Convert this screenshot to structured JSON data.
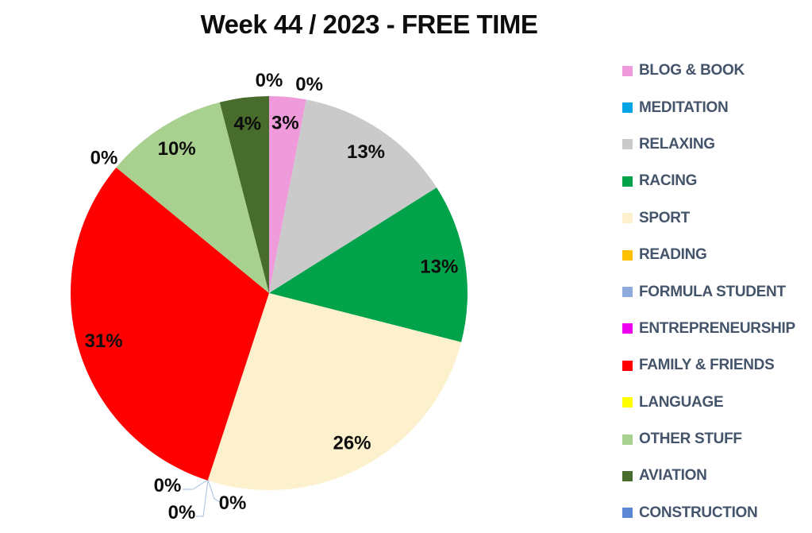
{
  "title": "Week 44 / 2023 - FREE TIME",
  "chart_data": {
    "type": "pie",
    "title": "Week 44 / 2023 - FREE TIME",
    "legend_position": "right",
    "label_format": "percent",
    "slices": [
      {
        "label": "BLOG & BOOK",
        "pct": 3,
        "color": "#ef9bdb",
        "label_text": "3%",
        "placement": "inside"
      },
      {
        "label": "MEDITATION",
        "pct": 0,
        "color": "#00a3e3",
        "label_text": "0%",
        "placement": "outside"
      },
      {
        "label": "RELAXING",
        "pct": 13,
        "color": "#cbcaca",
        "label_text": "13%",
        "placement": "inside"
      },
      {
        "label": "RACING",
        "pct": 13,
        "color": "#00a24a",
        "label_text": "13%",
        "placement": "inside"
      },
      {
        "label": "SPORT",
        "pct": 26,
        "color": "#fcf0cd",
        "label_text": "26%",
        "placement": "inside"
      },
      {
        "label": "READING",
        "pct": 0,
        "color": "#ffc000",
        "label_text": "0%",
        "placement": "leader",
        "label_xy": [
          211,
          611
        ]
      },
      {
        "label": "FORMULA STUDENT",
        "pct": 0,
        "color": "#8faadc",
        "label_text": "0%",
        "placement": "leader",
        "label_xy": [
          293,
          633
        ]
      },
      {
        "label": "ENTREPRENEURSHIP",
        "pct": 0,
        "color": "#ee00ee",
        "label_text": "0%",
        "placement": "leader",
        "label_xy": [
          229,
          645
        ]
      },
      {
        "label": "FAMILY & FRIENDS",
        "pct": 31,
        "color": "#fe0000",
        "label_text": "31%",
        "placement": "inside"
      },
      {
        "label": "LANGUAGE",
        "pct": 0,
        "color": "#ffff00",
        "label_text": "0%",
        "placement": "outside"
      },
      {
        "label": "OTHER STUFF",
        "pct": 10,
        "color": "#a8d08f",
        "label_text": "10%",
        "placement": "inside"
      },
      {
        "label": "AVIATION",
        "pct": 4,
        "color": "#486c2c",
        "label_text": "4%",
        "placement": "inside"
      },
      {
        "label": "CONSTRUCTION",
        "pct": 0,
        "color": "#5b87d5",
        "label_text": "0%",
        "placement": "outside"
      }
    ],
    "leader_line_color": "#b4c7e7",
    "legend_text_color": "#44546a"
  }
}
